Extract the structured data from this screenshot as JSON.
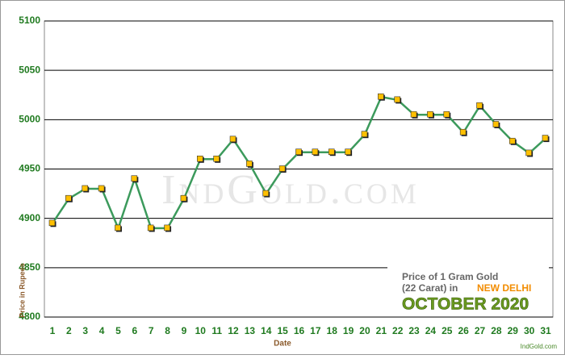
{
  "chart_data": {
    "type": "line",
    "categories": [
      "1",
      "2",
      "3",
      "4",
      "5",
      "6",
      "7",
      "8",
      "9",
      "10",
      "11",
      "12",
      "13",
      "14",
      "15",
      "16",
      "17",
      "18",
      "19",
      "20",
      "21",
      "22",
      "23",
      "24",
      "25",
      "26",
      "27",
      "28",
      "29",
      "30",
      "31"
    ],
    "series": [
      {
        "name": "Price of 1 Gram Gold",
        "color": "#3c9a5c",
        "marker_color": "#ffc000",
        "values": [
          4895,
          4920,
          4930,
          4930,
          4890,
          4940,
          4890,
          4890,
          4920,
          4960,
          4960,
          4980,
          4955,
          4925,
          4950,
          4967,
          4967,
          4967,
          4967,
          4985,
          5023,
          5020,
          5005,
          5005,
          5005,
          4987,
          5014,
          4995,
          4978,
          4966,
          4981
        ]
      }
    ],
    "ylim": [
      4800,
      5100
    ],
    "yticks": [
      4800,
      4850,
      4900,
      4950,
      5000,
      5050,
      5100
    ],
    "grid": true,
    "x_label": "Date",
    "y_label": "Price in Rupees",
    "legend_title": "Price of 1 Gram Gold",
    "legend_carat": "(22 Carat) in",
    "legend_city": "NEW DELHI",
    "legend_month": "OCTOBER 2020",
    "watermark": "IndGold.com",
    "footer": "IndGold.com"
  }
}
